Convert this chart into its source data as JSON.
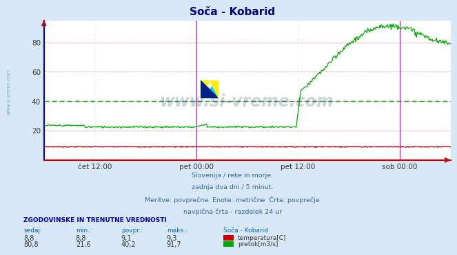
{
  "title": "Soča - Kobarid",
  "bg_color": "#d8e8f8",
  "plot_bg_color": "#ffffff",
  "grid_color_h": "#ffaaaa",
  "grid_color_v": "#dddddd",
  "title_color": "#000080",
  "x_tick_labels": [
    "čet 12:00",
    "pet 00:00",
    "pet 12:00",
    "sob 00:00"
  ],
  "x_tick_positions": [
    0.125,
    0.375,
    0.625,
    0.875
  ],
  "ylim": [
    0,
    95
  ],
  "y_ticks": [
    20,
    40,
    60,
    80
  ],
  "temp_color": "#cc0000",
  "flow_color": "#00aa00",
  "avg_flow": 40.2,
  "avg_temp": 9.1,
  "vline_color": "#cc00cc",
  "vline_positions": [
    0.375,
    0.875
  ],
  "spine_color": "#0000cc",
  "xaxis_arrow_color": "#cc0000",
  "left_label_color": "#5588aa",
  "n_points": 576,
  "footer_color": "#336699",
  "footer_lines": [
    "Slovenija / reke in morje.",
    "zadnja dva dni / 5 minut.",
    "Meritve: povprečne  Enote: metrične  Črta: povprečje",
    "navpična črta - razdelek 24 ur"
  ],
  "table_header": "ZGODOVINSKE IN TRENUTNE VREDNOSTI",
  "table_col_headers": [
    "sedaj:",
    "min.:",
    "povpr.:",
    "maks.:",
    "Soča - Kobarid"
  ],
  "table_row1": [
    "8,8",
    "8,8",
    "9,1",
    "9,3",
    "temperatura[C]"
  ],
  "table_row2": [
    "80,8",
    "21,6",
    "40,2",
    "91,7",
    "pretok[m3/s]"
  ],
  "watermark_text": "www.si-vreme.com",
  "watermark_color": "#1a3a6a",
  "side_label_color": "#4488aa"
}
